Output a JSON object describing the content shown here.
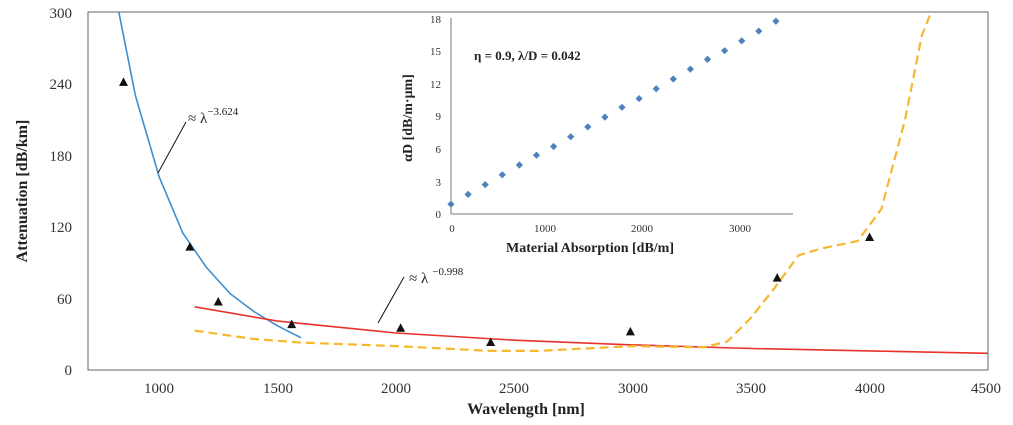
{
  "chart_data": [
    {
      "type": "line",
      "xlabel": "Wavelength [nm]",
      "ylabel": "Attenuation [dB/km]",
      "xlim": [
        700,
        4500
      ],
      "ylim": [
        0,
        300
      ],
      "xticks": [
        "1000",
        "1500",
        "2000",
        "2500",
        "3000",
        "3500",
        "4000",
        "4500"
      ],
      "yticks": [
        "0",
        "60",
        "120",
        "180",
        "240",
        "300"
      ],
      "grid": false,
      "legend": "none",
      "series": [
        {
          "kind": "line",
          "color": "#3c8fd0",
          "dash": "solid",
          "x": [
            830,
            900,
            1000,
            1100,
            1200,
            1300,
            1400,
            1500,
            1600
          ],
          "y": [
            300,
            230,
            162,
            115,
            86,
            64,
            49,
            37,
            27
          ]
        },
        {
          "kind": "line",
          "color": "#e8322c",
          "dash": "solid",
          "x": [
            1150,
            1500,
            2000,
            2500,
            3000,
            3500,
            4000,
            4500
          ],
          "y": [
            53,
            41,
            31,
            25,
            21,
            18,
            16,
            14
          ]
        },
        {
          "kind": "line",
          "color": "#f5b82e",
          "dash": "dashed",
          "x": [
            1150,
            1400,
            1600,
            2000,
            2400,
            2600,
            3000,
            3300,
            3400,
            3500,
            3600,
            3700,
            3800,
            3950,
            4050,
            4150,
            4220,
            4260
          ],
          "y": [
            33,
            26,
            23,
            20,
            16,
            16,
            20,
            19,
            24,
            44,
            69,
            96,
            102,
            108,
            135,
            210,
            280,
            300
          ]
        },
        {
          "kind": "marker",
          "marker": "triangle",
          "color": "#111111",
          "x": [
            850,
            1130,
            1250,
            1560,
            2020,
            2400,
            2990,
            3610,
            4000
          ],
          "y": [
            241,
            103,
            57,
            38,
            35,
            23,
            32,
            77,
            111
          ]
        }
      ],
      "annotations": [
        {
          "text": "≈ λ",
          "sup": "−3.624"
        },
        {
          "text": "≈ λ",
          "sup": "−0.998"
        }
      ]
    },
    {
      "type": "scatter",
      "xlabel": "Material Absorption [dB/m]",
      "ylabel": "αD [dB/m·μm]",
      "xlim": [
        0,
        3500
      ],
      "ylim": [
        0,
        18
      ],
      "xticks": [
        "0",
        "1000",
        "2000",
        "3000"
      ],
      "yticks": [
        "0",
        "3",
        "6",
        "9",
        "12",
        "15",
        "18"
      ],
      "grid": false,
      "legend": "none",
      "annotation": "η = 0.9, λ/D = 0.042",
      "series": [
        {
          "kind": "marker",
          "marker": "diamond",
          "color": "#4f81bd",
          "x": [
            0,
            175,
            350,
            525,
            700,
            875,
            1050,
            1225,
            1400,
            1575,
            1750,
            1925,
            2100,
            2275,
            2450,
            2625,
            2800,
            2975,
            3150,
            3325
          ],
          "y": [
            0.9,
            1.8,
            2.7,
            3.6,
            4.5,
            5.4,
            6.2,
            7.1,
            8.0,
            8.9,
            9.8,
            10.6,
            11.5,
            12.4,
            13.3,
            14.2,
            15.0,
            15.9,
            16.8,
            17.7
          ]
        }
      ]
    }
  ]
}
